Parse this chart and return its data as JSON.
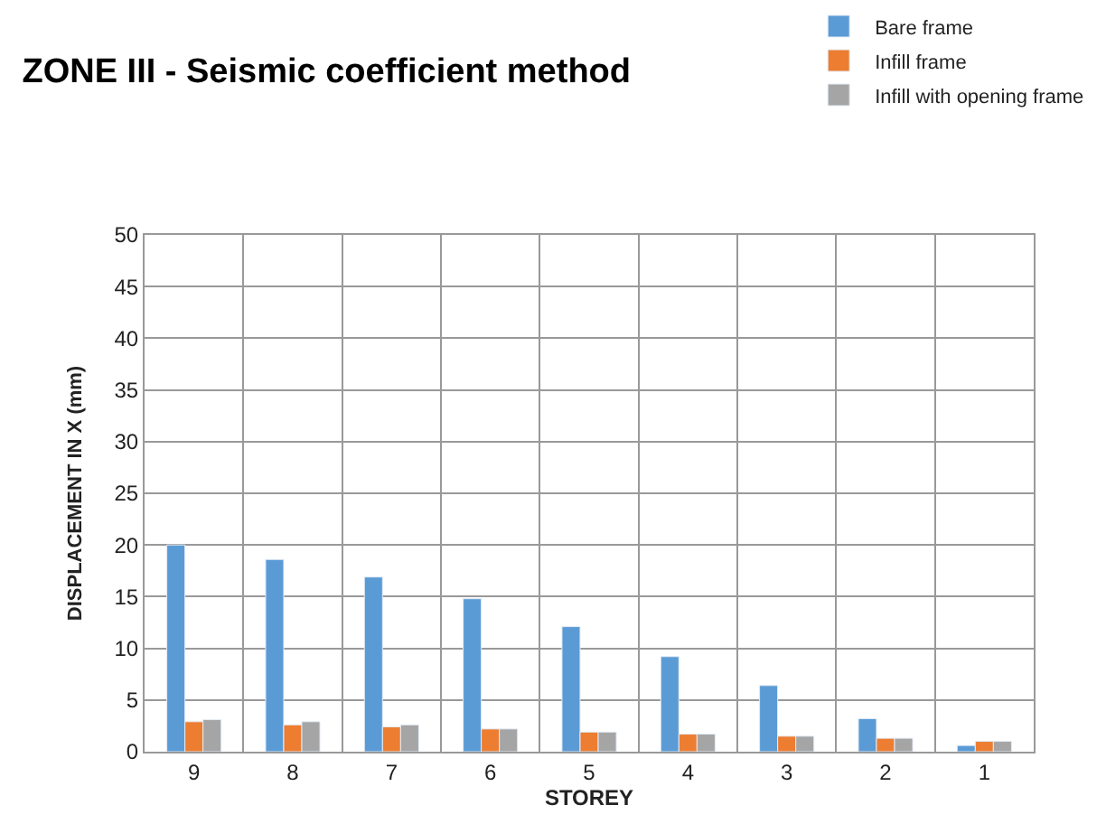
{
  "chart_data": {
    "type": "bar",
    "title": "ZONE III - Seismic coefficient method",
    "xlabel": "STOREY",
    "ylabel": "DISPLACEMENT IN X (mm)",
    "categories": [
      "9",
      "8",
      "7",
      "6",
      "5",
      "4",
      "3",
      "2",
      "1"
    ],
    "series": [
      {
        "name": "Bare frame",
        "color": "#5b9bd5",
        "values": [
          20,
          18.6,
          16.9,
          14.8,
          12.1,
          9.2,
          6.4,
          3.2,
          0.6
        ]
      },
      {
        "name": "Infill frame",
        "color": "#ed7d31",
        "values": [
          2.9,
          2.6,
          2.4,
          2.2,
          1.9,
          1.7,
          1.5,
          1.3,
          1.0
        ]
      },
      {
        "name": "Infill with opening frame",
        "color": "#a5a5a5",
        "values": [
          3.1,
          2.9,
          2.6,
          2.2,
          1.9,
          1.7,
          1.5,
          1.3,
          1.0
        ]
      }
    ],
    "ylim": [
      0,
      50
    ],
    "yticks": [
      0,
      5,
      10,
      15,
      20,
      25,
      30,
      35,
      40,
      45,
      50
    ],
    "grid": true,
    "legend": "top right"
  }
}
